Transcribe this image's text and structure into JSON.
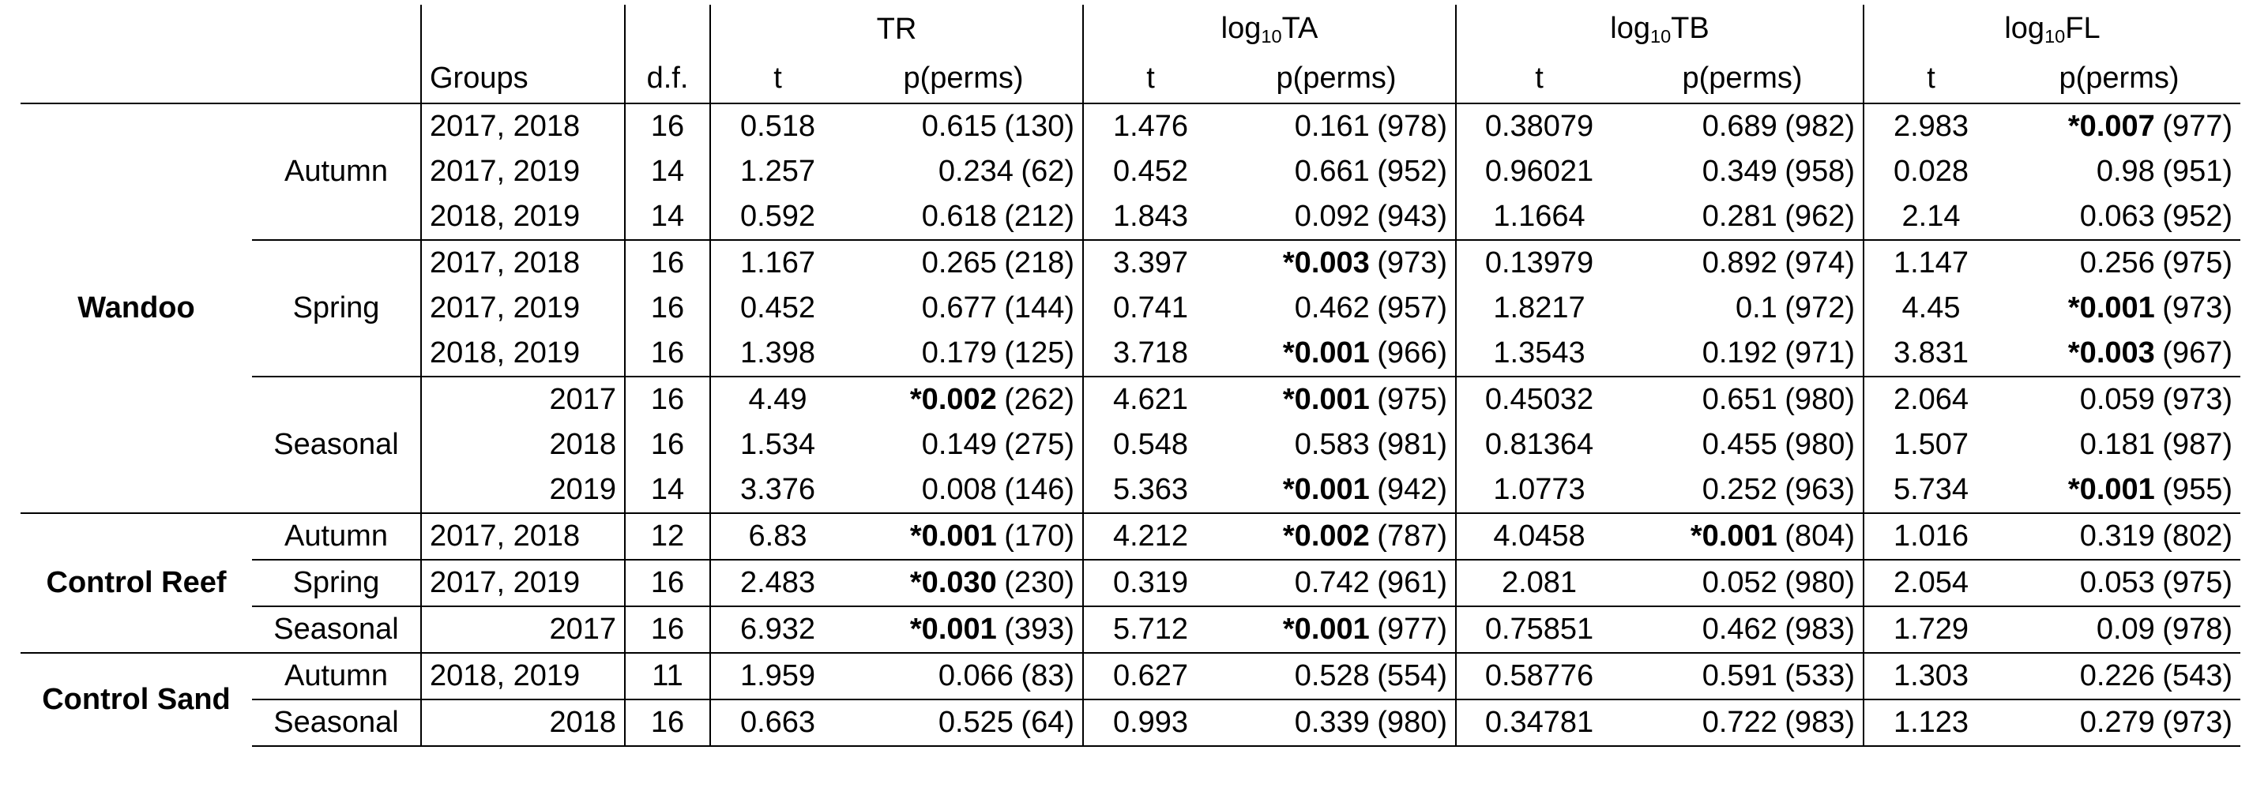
{
  "table": {
    "header": {
      "groups": "Groups",
      "df": "d.f.",
      "measures": [
        {
          "label": "TR",
          "t": "t",
          "p": "p(perms)"
        },
        {
          "label": "log",
          "sub": "10",
          "suffix": "TA",
          "t": "t",
          "p": "p(perms)"
        },
        {
          "label": "log",
          "sub": "10",
          "suffix": "TB",
          "t": "t",
          "p": "p(perms)"
        },
        {
          "label": "log",
          "sub": "10",
          "suffix": "FL",
          "t": "t",
          "p": "p(perms)"
        }
      ]
    },
    "sites": [
      {
        "name": "Wandoo",
        "seasons": [
          {
            "name": "Autumn",
            "rows": [
              {
                "groups": "2017, 2018",
                "df": "16",
                "cells": [
                  {
                    "t": "0.518",
                    "p": "0.615",
                    "n": "(130)"
                  },
                  {
                    "t": "1.476",
                    "p": "0.161",
                    "n": "(978)"
                  },
                  {
                    "t": "0.38079",
                    "p": "0.689",
                    "n": "(982)"
                  },
                  {
                    "t": "2.983",
                    "sig": "*0.007",
                    "n": "(977)"
                  }
                ]
              },
              {
                "groups": "2017, 2019",
                "df": "14",
                "cells": [
                  {
                    "t": "1.257",
                    "p": "0.234",
                    "n": "(62)"
                  },
                  {
                    "t": "0.452",
                    "p": "0.661",
                    "n": "(952)"
                  },
                  {
                    "t": "0.96021",
                    "p": "0.349",
                    "n": "(958)"
                  },
                  {
                    "t": "0.028",
                    "p": "0.98",
                    "n": "(951)"
                  }
                ]
              },
              {
                "groups": "2018, 2019",
                "df": "14",
                "cells": [
                  {
                    "t": "0.592",
                    "p": "0.618",
                    "n": "(212)"
                  },
                  {
                    "t": "1.843",
                    "p": "0.092",
                    "n": "(943)"
                  },
                  {
                    "t": "1.1664",
                    "p": "0.281",
                    "n": "(962)"
                  },
                  {
                    "t": "2.14",
                    "p": "0.063",
                    "n": "(952)"
                  }
                ]
              }
            ]
          },
          {
            "name": "Spring",
            "rows": [
              {
                "groups": "2017, 2018",
                "df": "16",
                "cells": [
                  {
                    "t": "1.167",
                    "p": "0.265",
                    "n": "(218)"
                  },
                  {
                    "t": "3.397",
                    "sig": "*0.003",
                    "n": "(973)"
                  },
                  {
                    "t": "0.13979",
                    "p": "0.892",
                    "n": "(974)"
                  },
                  {
                    "t": "1.147",
                    "p": "0.256",
                    "n": "(975)"
                  }
                ]
              },
              {
                "groups": "2017, 2019",
                "df": "16",
                "cells": [
                  {
                    "t": "0.452",
                    "p": "0.677",
                    "n": "(144)"
                  },
                  {
                    "t": "0.741",
                    "p": "0.462",
                    "n": "(957)"
                  },
                  {
                    "t": "1.8217",
                    "p": "0.1",
                    "n": "(972)"
                  },
                  {
                    "t": "4.45",
                    "sig": "*0.001",
                    "n": "(973)"
                  }
                ]
              },
              {
                "groups": "2018, 2019",
                "df": "16",
                "cells": [
                  {
                    "t": "1.398",
                    "p": "0.179",
                    "n": "(125)"
                  },
                  {
                    "t": "3.718",
                    "sig": "*0.001",
                    "n": "(966)"
                  },
                  {
                    "t": "1.3543",
                    "p": "0.192",
                    "n": "(971)"
                  },
                  {
                    "t": "3.831",
                    "sig": "*0.003",
                    "n": "(967)"
                  }
                ]
              }
            ]
          },
          {
            "name": "Seasonal",
            "rows": [
              {
                "groups": "2017",
                "df": "16",
                "cells": [
                  {
                    "t": "4.49",
                    "sig": "*0.002",
                    "n": "(262)"
                  },
                  {
                    "t": "4.621",
                    "sig": "*0.001",
                    "n": "(975)"
                  },
                  {
                    "t": "0.45032",
                    "p": "0.651",
                    "n": "(980)"
                  },
                  {
                    "t": "2.064",
                    "p": "0.059",
                    "n": "(973)"
                  }
                ]
              },
              {
                "groups": "2018",
                "df": "16",
                "cells": [
                  {
                    "t": "1.534",
                    "p": "0.149",
                    "n": "(275)"
                  },
                  {
                    "t": "0.548",
                    "p": "0.583",
                    "n": "(981)"
                  },
                  {
                    "t": "0.81364",
                    "p": "0.455",
                    "n": "(980)"
                  },
                  {
                    "t": "1.507",
                    "p": "0.181",
                    "n": "(987)"
                  }
                ]
              },
              {
                "groups": "2019",
                "df": "14",
                "cells": [
                  {
                    "t": "3.376",
                    "p": "0.008",
                    "n": "(146)"
                  },
                  {
                    "t": "5.363",
                    "sig": "*0.001",
                    "n": "(942)"
                  },
                  {
                    "t": "1.0773",
                    "p": "0.252",
                    "n": "(963)"
                  },
                  {
                    "t": "5.734",
                    "sig": "*0.001",
                    "n": "(955)"
                  }
                ]
              }
            ]
          }
        ]
      },
      {
        "name": "Control Reef",
        "seasons": [
          {
            "name": "Autumn",
            "rows": [
              {
                "groups": "2017, 2018",
                "df": "12",
                "cells": [
                  {
                    "t": "6.83",
                    "sig": "*0.001",
                    "n": "(170)"
                  },
                  {
                    "t": "4.212",
                    "sig": "*0.002",
                    "n": "(787)"
                  },
                  {
                    "t": "4.0458",
                    "sig": "*0.001",
                    "n": "(804)"
                  },
                  {
                    "t": "1.016",
                    "p": "0.319",
                    "n": "(802)"
                  }
                ]
              }
            ]
          },
          {
            "name": "Spring",
            "rows": [
              {
                "groups": "2017, 2019",
                "df": "16",
                "cells": [
                  {
                    "t": "2.483",
                    "sig": "*0.030",
                    "n": "(230)"
                  },
                  {
                    "t": "0.319",
                    "p": "0.742",
                    "n": "(961)"
                  },
                  {
                    "t": "2.081",
                    "p": "0.052",
                    "n": "(980)"
                  },
                  {
                    "t": "2.054",
                    "p": "0.053",
                    "n": "(975)"
                  }
                ]
              }
            ]
          },
          {
            "name": "Seasonal",
            "rows": [
              {
                "groups": "2017",
                "df": "16",
                "cells": [
                  {
                    "t": "6.932",
                    "sig": "*0.001",
                    "n": "(393)"
                  },
                  {
                    "t": "5.712",
                    "sig": "*0.001",
                    "n": "(977)"
                  },
                  {
                    "t": "0.75851",
                    "p": "0.462",
                    "n": "(983)"
                  },
                  {
                    "t": "1.729",
                    "p": "0.09",
                    "n": "(978)"
                  }
                ]
              }
            ]
          }
        ]
      },
      {
        "name": "Control Sand",
        "seasons": [
          {
            "name": "Autumn",
            "rows": [
              {
                "groups": "2018, 2019",
                "df": "11",
                "cells": [
                  {
                    "t": "1.959",
                    "p": "0.066",
                    "n": "(83)"
                  },
                  {
                    "t": "0.627",
                    "p": "0.528",
                    "n": "(554)"
                  },
                  {
                    "t": "0.58776",
                    "p": "0.591",
                    "n": "(533)"
                  },
                  {
                    "t": "1.303",
                    "p": "0.226",
                    "n": "(543)"
                  }
                ]
              }
            ]
          },
          {
            "name": "Seasonal",
            "rows": [
              {
                "groups": "2018",
                "df": "16",
                "cells": [
                  {
                    "t": "0.663",
                    "p": "0.525",
                    "n": "(64)"
                  },
                  {
                    "t": "0.993",
                    "p": "0.339",
                    "n": "(980)"
                  },
                  {
                    "t": "0.34781",
                    "p": "0.722",
                    "n": "(983)"
                  },
                  {
                    "t": "1.123",
                    "p": "0.279",
                    "n": "(973)"
                  }
                ]
              }
            ]
          }
        ]
      }
    ]
  }
}
